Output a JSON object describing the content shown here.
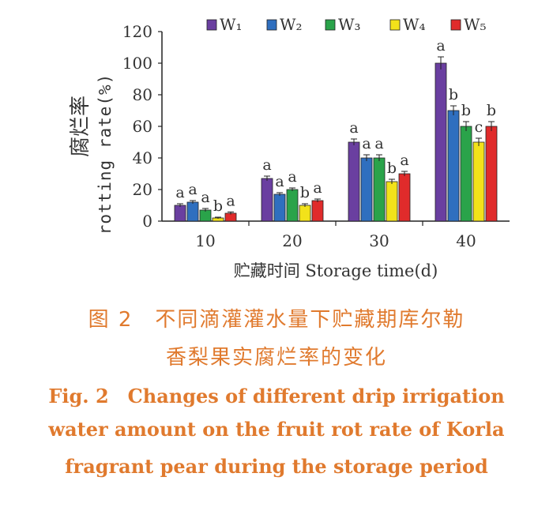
{
  "chart_data": {
    "type": "bar",
    "categories": [
      "10",
      "20",
      "30",
      "40"
    ],
    "series": [
      {
        "name": "W₁",
        "color": "#6a3fa0",
        "values": [
          10,
          27,
          50,
          100
        ],
        "errors": [
          1,
          1.5,
          2,
          4
        ],
        "labels": [
          "a",
          "a",
          "a",
          "a"
        ]
      },
      {
        "name": "W₂",
        "color": "#2f6fbf",
        "values": [
          12,
          17,
          40,
          70
        ],
        "errors": [
          1,
          1,
          2,
          3
        ],
        "labels": [
          "a",
          "a",
          "a",
          "b"
        ]
      },
      {
        "name": "W₃",
        "color": "#2aa34a",
        "values": [
          7,
          20,
          40,
          60
        ],
        "errors": [
          1,
          1,
          2,
          3
        ],
        "labels": [
          "a",
          "a",
          "a",
          "b"
        ]
      },
      {
        "name": "W₄",
        "color": "#f2e21a",
        "values": [
          2,
          10,
          25,
          50
        ],
        "errors": [
          0.5,
          1,
          1.5,
          2.5
        ],
        "labels": [
          "b",
          "b",
          "b",
          "c"
        ]
      },
      {
        "name": "W₅",
        "color": "#e02b2b",
        "values": [
          5,
          13,
          30,
          60
        ],
        "errors": [
          0.8,
          1,
          1.5,
          3
        ],
        "labels": [
          "a",
          "a",
          "a",
          "b"
        ]
      }
    ],
    "xlabel": "贮藏时间 Storage time(d)",
    "ylabel_cn": "腐烂率",
    "ylabel_en": "rotting rate(%)",
    "ylim": [
      0,
      120
    ],
    "yticks": [
      "0",
      "20",
      "40",
      "60",
      "80",
      "100",
      "120"
    ],
    "legend_position": "top"
  },
  "caption": {
    "cn_line1": "图 2　不同滴灌灌水量下贮藏期库尔勒",
    "cn_line2": "香梨果实腐烂率的变化",
    "en_line1": "Fig. 2　Changes of different drip irrigation",
    "en_line2": "water amount on the fruit rot rate of Korla",
    "en_line3": "fragrant pear during the storage period"
  }
}
